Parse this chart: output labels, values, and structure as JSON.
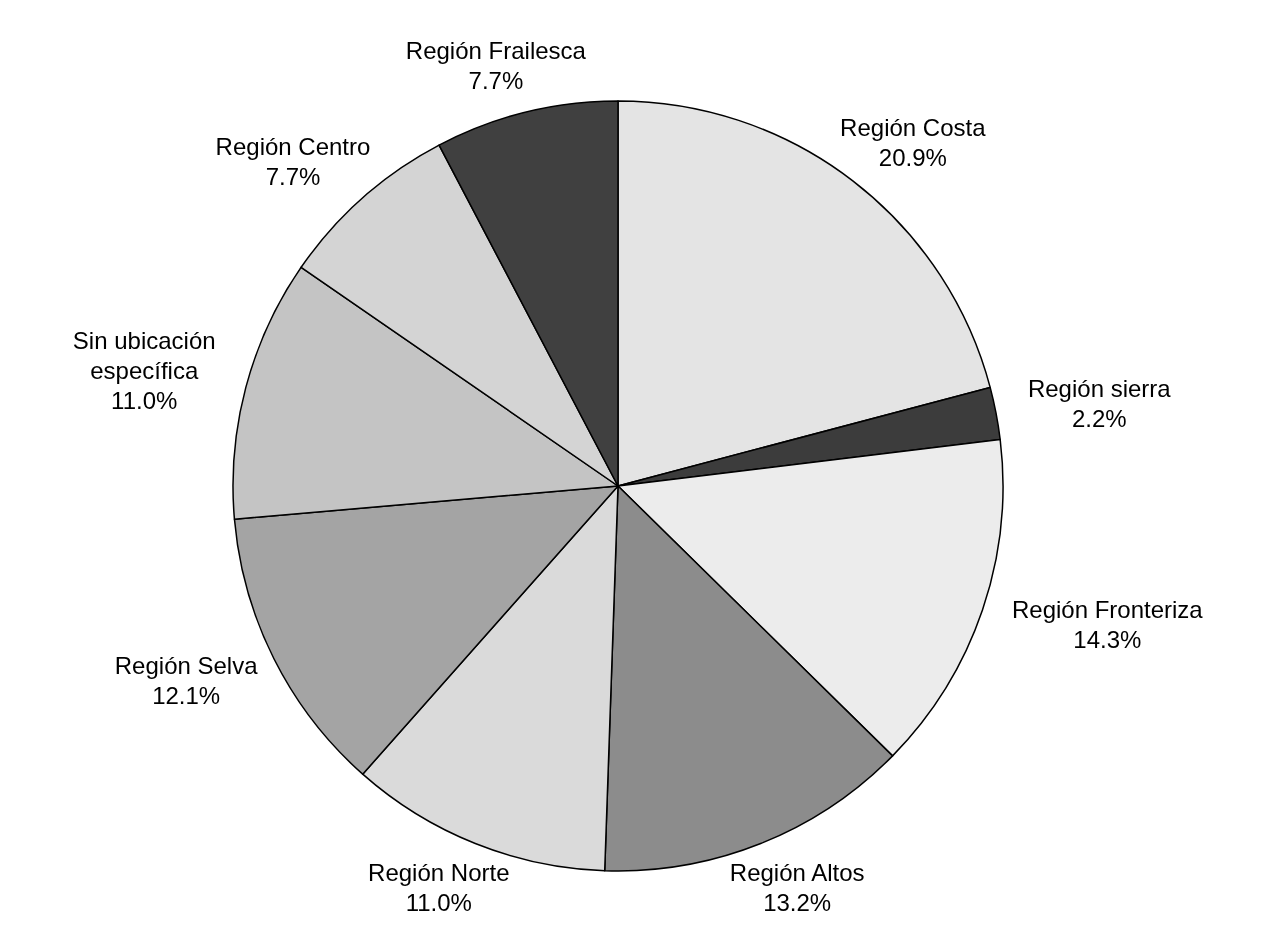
{
  "chart_data": {
    "type": "pie",
    "categories": [
      "Región Costa",
      "Región sierra",
      "Región Fronteriza",
      "Región Altos",
      "Región Norte",
      "Región Selva",
      "Sin ubicación específica",
      "Región Centro",
      "Región Frailesca"
    ],
    "values": [
      20.9,
      2.2,
      14.3,
      13.2,
      11.0,
      12.1,
      11.0,
      7.7,
      7.7
    ],
    "value_labels": [
      "20.9%",
      "2.2%",
      "14.3%",
      "13.2%",
      "11.0%",
      "12.1%",
      "11.0%",
      "7.7%",
      "7.7%"
    ],
    "colors": [
      "#e4e4e4",
      "#3c3c3c",
      "#ececec",
      "#8c8c8c",
      "#dadada",
      "#a4a4a4",
      "#c4c4c4",
      "#d4d4d4",
      "#404040"
    ]
  }
}
